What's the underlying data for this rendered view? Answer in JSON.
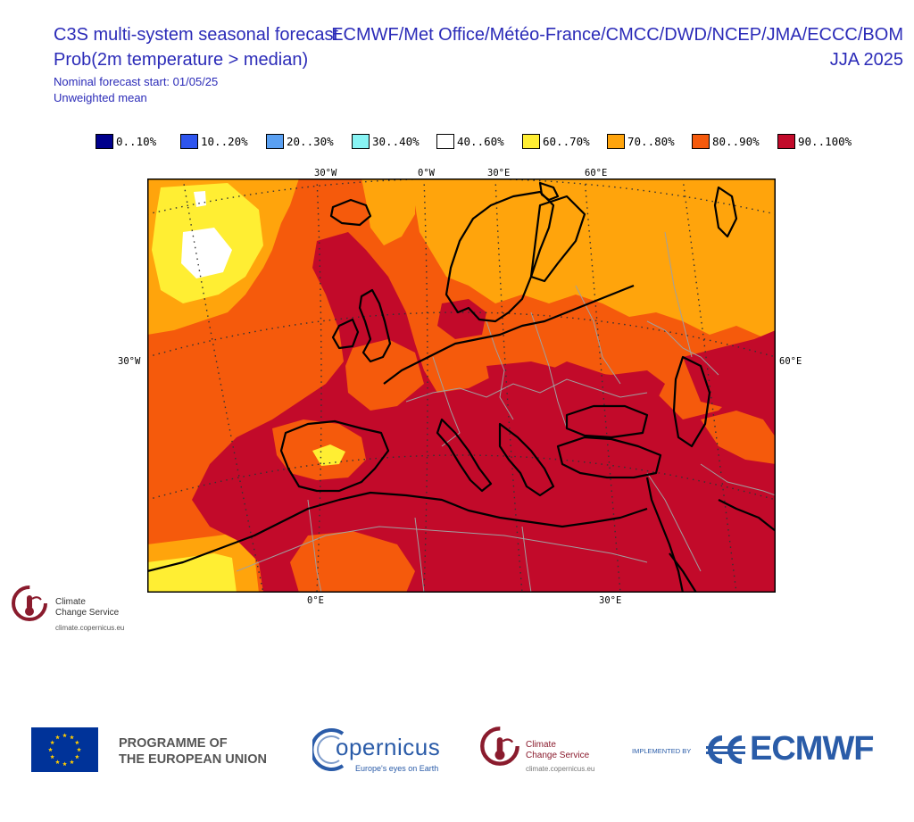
{
  "header": {
    "title_line1": "C3S multi-system seasonal forecast",
    "title_line2": "Prob(2m temperature > median)",
    "subtitle_line1": "Nominal forecast start: 01/05/25",
    "subtitle_line2": "Unweighted mean",
    "centres": "ECMWF/Met Office/Météo-France/CMCC/DWD/NCEP/JMA/ECCC/BOM",
    "season": "JJA 2025"
  },
  "legend": [
    {
      "label": "0..10%",
      "color": "#00008c"
    },
    {
      "label": "10..20%",
      "color": "#2e55ee"
    },
    {
      "label": "20..30%",
      "color": "#5aa0f2"
    },
    {
      "label": "30..40%",
      "color": "#88f4f4"
    },
    {
      "label": "40..60%",
      "color": "#ffffff"
    },
    {
      "label": "60..70%",
      "color": "#ffee33"
    },
    {
      "label": "70..80%",
      "color": "#ffa40c"
    },
    {
      "label": "80..90%",
      "color": "#f55a0c"
    },
    {
      "label": "90..100%",
      "color": "#c20a2a"
    }
  ],
  "map": {
    "lon_labels_top": [
      "30°W",
      "0°W",
      "30°E",
      "60°E"
    ],
    "lon_labels_bottom": [
      "0°E",
      "30°E"
    ],
    "lat_label_left": "30°W",
    "lat_label_right": "60°E",
    "colors": {
      "cat_90_100": "#c20a2a",
      "cat_80_90": "#f55a0c",
      "cat_70_80": "#ffa40c",
      "cat_60_70": "#ffee33",
      "cat_40_60": "#ffffff",
      "coastline": "#000000",
      "borders": "#a0a0a0",
      "graticule": "#333333"
    }
  },
  "logos": {
    "ccs_name_line1": "Climate",
    "ccs_name_line2": "Change Service",
    "ccs_url": "climate.copernicus.eu",
    "eu_line1": "PROGRAMME OF",
    "eu_line2": "THE EUROPEAN UNION",
    "copernicus_name": "opernicus",
    "copernicus_tagline": "Europe's eyes on Earth",
    "implemented_by": "IMPLEMENTED BY",
    "ecmwf": "ECMWF",
    "colors": {
      "eu_blue": "#003399",
      "eu_stars": "#ffcc00",
      "ccs_maroon": "#8a1b2d",
      "copernicus_blue": "#2a5ba8",
      "ecmwf_blue": "#2a5ca8"
    }
  }
}
